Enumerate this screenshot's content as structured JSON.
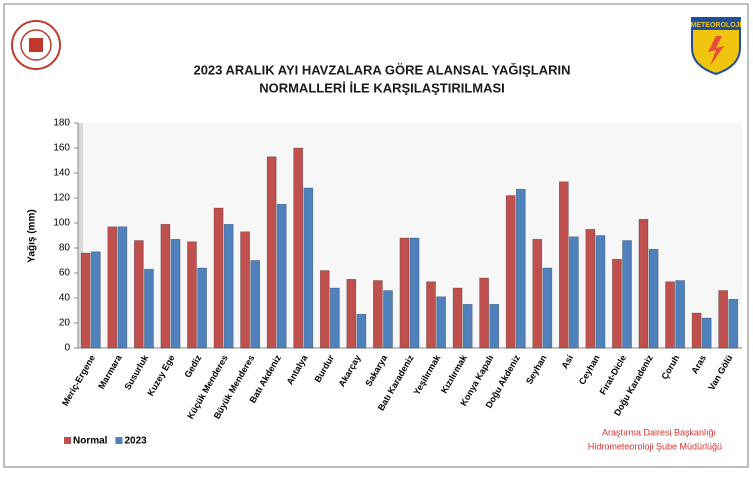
{
  "chart_data": {
    "type": "bar",
    "title": [
      "2023 ARALIK AYI HAVZALARA GÖRE ALANSAL YAĞIŞLARIN",
      "NORMALLERİ İLE KARŞILAŞTIRILMASI"
    ],
    "y_label": "Yağış (mm)",
    "logo_text": "METEOROLOJİ",
    "footer": [
      "Araştırma Dairesi Başkanlığı",
      "Hidrometeoroloji Şube Müdürlüğü"
    ],
    "categories": [
      "Meriç-Ergene",
      "Marmara",
      "Susurluk",
      "Kuzey Ege",
      "Gediz",
      "Küçük Menderes",
      "Büyük Menderes",
      "Batı Akdeniz",
      "Antalya",
      "Burdur",
      "Akarçay",
      "Sakarya",
      "Batı Karadeniz",
      "Yeşilırmak",
      "Kızılırmak",
      "Konya Kapalı",
      "Doğu Akdeniz",
      "Seyhan",
      "Asi",
      "Ceyhan",
      "Fırat-Dicle",
      "Doğu Karadeniz",
      "Çoruh",
      "Aras",
      "Van Gölü"
    ],
    "series": [
      {
        "name": "Normal",
        "color": "#c0504d",
        "values": [
          76,
          97,
          86,
          99,
          85,
          112,
          93,
          153,
          160,
          62,
          55,
          54,
          88,
          53,
          48,
          56,
          122,
          87,
          133,
          95,
          71,
          103,
          53,
          28,
          46
        ]
      },
      {
        "name": "2023",
        "color": "#4f81bd",
        "values": [
          77,
          97,
          63,
          87,
          64,
          99,
          70,
          115,
          128,
          48,
          27,
          46,
          88,
          41,
          35,
          35,
          127,
          64,
          89,
          90,
          86,
          79,
          54,
          24,
          39
        ]
      }
    ],
    "ylim": [
      0,
      180
    ],
    "yticks": [
      0,
      20,
      40,
      60,
      80,
      100,
      120,
      140,
      160,
      180
    ],
    "grid": false
  }
}
